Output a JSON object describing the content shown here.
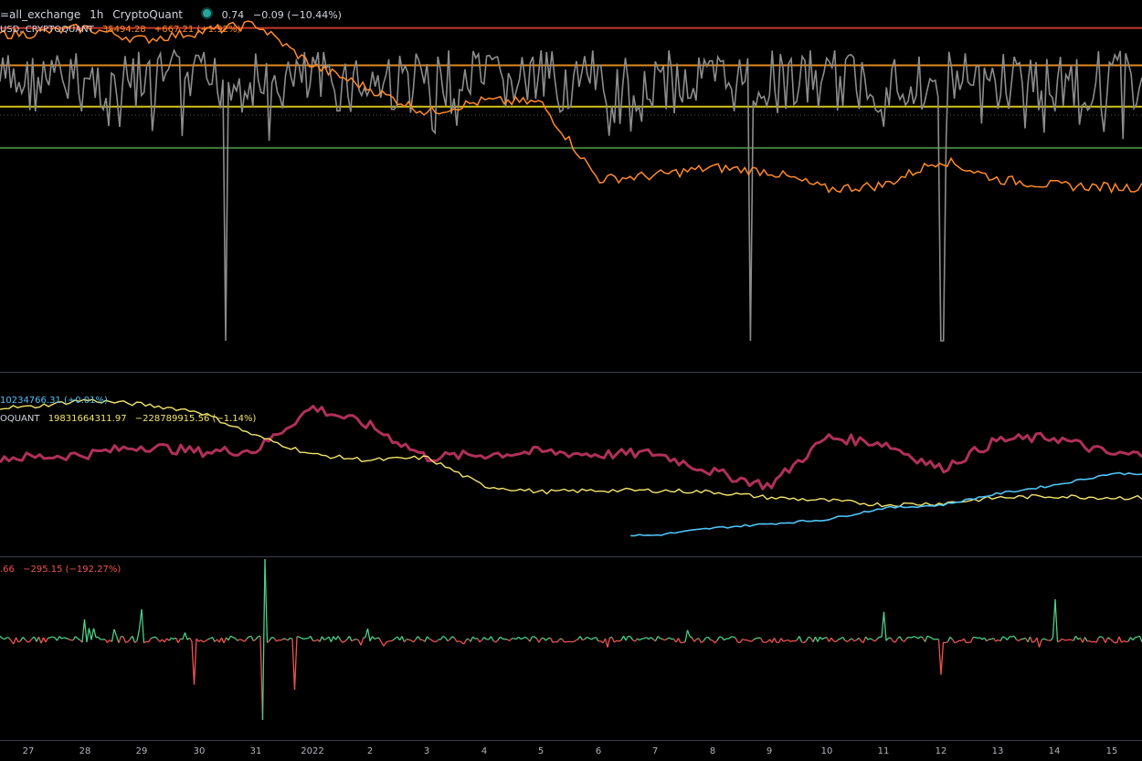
{
  "header": {
    "title": "=all_exchange",
    "interval": "1h",
    "source": "CryptoQuant",
    "value": "0.74",
    "change": "−0.09 (−10.44%)"
  },
  "price_legend": {
    "name": "USD, CRYPTOQUANT",
    "value": "35494.28",
    "change": "+667.21 (+1.92%)"
  },
  "pane2_legend": {
    "cyan_text": "10234766.31 (+0.01%)",
    "name": "OQUANT",
    "value": "19831664311.97",
    "change": "−228789915.56 (−1.14%)"
  },
  "pane3_legend": {
    "value": ".66",
    "change": "−295.15 (−192.27%)"
  },
  "colors": {
    "background": "#000000",
    "gray_series": "#8c8c8c",
    "price": "#ff8a2a",
    "red_line": "#c0392b",
    "orange_line": "#e08a1e",
    "yellow_line": "#d4c21a",
    "green_line": "#3f7d3a",
    "magenta": "#b0305a",
    "yellow_series": "#f2e56b",
    "cyan": "#4fc3f7",
    "osc_pos": "#4ccf86",
    "osc_neg": "#ef5350"
  },
  "chart_data": [
    {
      "type": "line",
      "name": "top-pane",
      "x": [
        "27",
        "28",
        "29",
        "30",
        "31",
        "2022",
        "2",
        "3",
        "4",
        "5",
        "6",
        "7",
        "8",
        "9",
        "10",
        "11",
        "12",
        "13",
        "14",
        "15"
      ],
      "series": [
        {
          "name": "USD, CRYPTOQUANT",
          "values": [
            50500,
            50800,
            50200,
            50600,
            51000,
            48900,
            47700,
            46500,
            47100,
            47000,
            43100,
            43300,
            43700,
            43500,
            42600,
            42800,
            44100,
            43100,
            42800,
            42700
          ]
        }
      ],
      "hlines": [
        50800,
        48900,
        46800,
        44700
      ]
    },
    {
      "type": "line",
      "name": "middle-pane",
      "x": [
        "27",
        "28",
        "29",
        "30",
        "31",
        "2022",
        "2",
        "3",
        "4",
        "5",
        "6",
        "7",
        "8",
        "9",
        "10",
        "11",
        "12",
        "13",
        "14",
        "15"
      ],
      "series": [
        {
          "name": "magenta",
          "values": [
            60,
            62,
            68,
            64,
            65,
            95,
            82,
            60,
            62,
            64,
            62,
            63,
            50,
            40,
            74,
            70,
            52,
            72,
            74,
            62
          ]
        },
        {
          "name": "yellow",
          "values": [
            95,
            100,
            97,
            92,
            75,
            62,
            58,
            60,
            40,
            36,
            37,
            37,
            36,
            32,
            30,
            27,
            28,
            32,
            33,
            32
          ]
        },
        {
          "name": "cyan",
          "values": [
            null,
            null,
            null,
            null,
            null,
            null,
            null,
            null,
            null,
            null,
            null,
            5,
            10,
            13,
            16,
            24,
            26,
            34,
            40,
            48
          ]
        }
      ]
    },
    {
      "type": "bar",
      "name": "oscillator",
      "x": [
        "27",
        "28",
        "29",
        "30",
        "31",
        "2022",
        "2",
        "3",
        "4",
        "5",
        "6",
        "7",
        "8",
        "9",
        "10",
        "11",
        "12",
        "13",
        "14",
        "15"
      ],
      "spikes": [
        {
          "x": "28",
          "v": 40
        },
        {
          "x": "29",
          "v": 60
        },
        {
          "x": "30",
          "v": -90
        },
        {
          "x": "31",
          "v": 160
        },
        {
          "x": "31",
          "v": -160
        },
        {
          "x": "2022",
          "v": -100
        },
        {
          "x": "11",
          "v": 55
        },
        {
          "x": "12",
          "v": -70
        },
        {
          "x": "14",
          "v": 80
        }
      ]
    }
  ],
  "x_ticks": [
    "27",
    "28",
    "29",
    "30",
    "31",
    "2022",
    "2",
    "3",
    "4",
    "5",
    "6",
    "7",
    "8",
    "9",
    "10",
    "11",
    "12",
    "13",
    "14",
    "15"
  ]
}
